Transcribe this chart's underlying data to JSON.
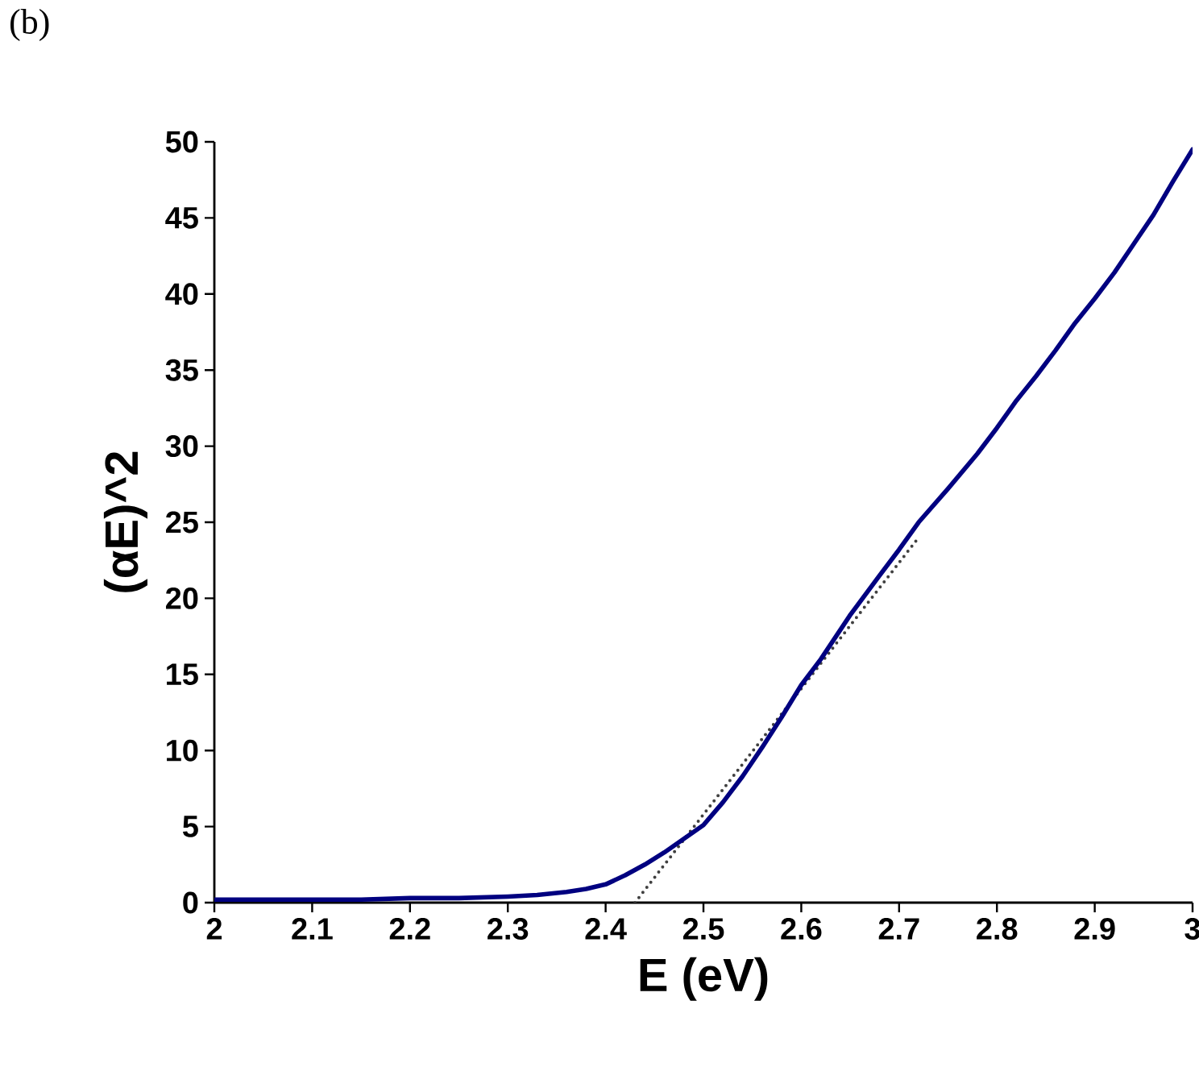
{
  "chart_data": {
    "type": "line",
    "title": "(b)",
    "xlabel": "E (eV)",
    "ylabel": "(αE)^2",
    "xlim": [
      2,
      3
    ],
    "ylim": [
      0,
      50
    ],
    "xticks": [
      2,
      2.1,
      2.2,
      2.3,
      2.4,
      2.5,
      2.6,
      2.7,
      2.8,
      2.9,
      3
    ],
    "yticks": [
      0,
      5,
      10,
      15,
      20,
      25,
      30,
      35,
      40,
      45,
      50
    ],
    "grid": false,
    "series": [
      {
        "color": "#000080",
        "line_style": "solid",
        "x": [
          2.0,
          2.05,
          2.1,
          2.15,
          2.2,
          2.25,
          2.3,
          2.33,
          2.36,
          2.38,
          2.4,
          2.42,
          2.44,
          2.46,
          2.48,
          2.5,
          2.52,
          2.54,
          2.56,
          2.58,
          2.6,
          2.62,
          2.65,
          2.68,
          2.7,
          2.72,
          2.75,
          2.78,
          2.8,
          2.82,
          2.84,
          2.86,
          2.88,
          2.9,
          2.92,
          2.94,
          2.96,
          2.98,
          3.0
        ],
        "values": [
          0.2,
          0.2,
          0.2,
          0.2,
          0.3,
          0.3,
          0.4,
          0.5,
          0.7,
          0.9,
          1.2,
          1.8,
          2.5,
          3.3,
          4.2,
          5.1,
          6.6,
          8.3,
          10.2,
          12.2,
          14.3,
          16.0,
          18.9,
          21.5,
          23.2,
          25.0,
          27.2,
          29.5,
          31.2,
          33.0,
          34.6,
          36.3,
          38.1,
          39.7,
          41.4,
          43.3,
          45.2,
          47.4,
          49.5
        ]
      },
      {
        "color": "#404040",
        "line_style": "dotted",
        "x": [
          2.43,
          2.72
        ],
        "values": [
          0,
          24
        ]
      }
    ]
  }
}
